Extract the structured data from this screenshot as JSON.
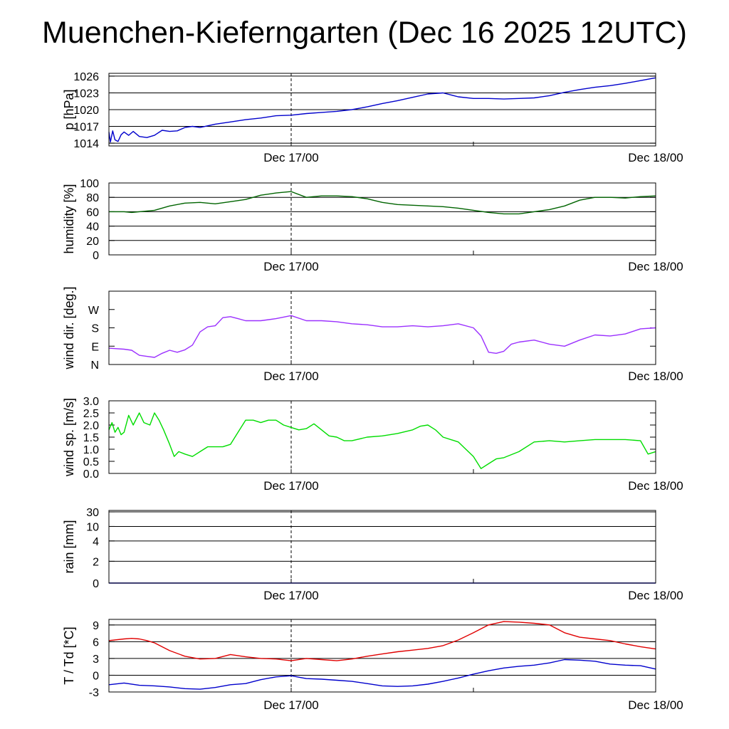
{
  "title": "Muenchen-Kieferngarten (Dec 16 2025 12UTC)",
  "x_ticks": [
    "Dec 17/00",
    "Dec 18/00"
  ],
  "x_range_hours": [
    0,
    36
  ],
  "chart_data": [
    {
      "id": "pressure",
      "type": "line",
      "ylabel": "p [hPa]",
      "ylim": [
        1013.5,
        1026.5
      ],
      "scale": "linear",
      "grid": true,
      "ticks": [
        1014,
        1017,
        1020,
        1023,
        1026
      ],
      "tick_labels": [
        "1014",
        "1017",
        "1020",
        "1023",
        "1026"
      ],
      "series": [
        {
          "color": "#0000cc",
          "x": [
            0,
            0.1,
            0.25,
            0.4,
            0.6,
            0.8,
            1,
            1.3,
            1.6,
            2,
            2.5,
            3,
            3.5,
            4,
            4.5,
            5,
            5.5,
            6,
            7,
            8,
            9,
            10,
            11,
            12,
            13,
            14,
            15,
            16,
            17,
            18,
            19,
            20,
            21,
            22,
            23,
            24,
            25,
            26,
            27,
            28,
            29,
            30,
            31,
            32,
            33,
            34,
            35,
            36
          ],
          "y": [
            1016.0,
            1014.2,
            1016.2,
            1014.6,
            1014.3,
            1015.5,
            1016.0,
            1015.4,
            1016.1,
            1015.2,
            1015.0,
            1015.4,
            1016.3,
            1016.1,
            1016.2,
            1016.8,
            1017.0,
            1016.8,
            1017.4,
            1017.8,
            1018.2,
            1018.5,
            1018.9,
            1019.0,
            1019.3,
            1019.5,
            1019.7,
            1020.0,
            1020.5,
            1021.1,
            1021.6,
            1022.2,
            1022.8,
            1023.0,
            1022.3,
            1022.0,
            1022.0,
            1021.9,
            1022.0,
            1022.1,
            1022.5,
            1023.1,
            1023.6,
            1024.0,
            1024.3,
            1024.7,
            1025.2,
            1025.7
          ]
        }
      ]
    },
    {
      "id": "humidity",
      "type": "line",
      "ylabel": "humidity [%]",
      "ylim": [
        0,
        100
      ],
      "scale": "linear",
      "grid": true,
      "ticks": [
        0,
        20,
        40,
        60,
        80,
        100
      ],
      "tick_labels": [
        "0",
        "20",
        "40",
        "60",
        "80",
        "100"
      ],
      "series": [
        {
          "color": "#006400",
          "x": [
            0,
            1,
            1.5,
            2,
            3,
            4,
            5,
            6,
            7,
            8,
            9,
            10,
            11,
            12,
            13,
            14,
            15,
            16,
            17,
            18,
            19,
            20,
            21,
            22,
            23,
            24,
            25,
            26,
            27,
            28,
            29,
            30,
            31,
            32,
            33,
            34,
            35,
            36
          ],
          "y": [
            60,
            60,
            59,
            60,
            62,
            68,
            72,
            73,
            71,
            74,
            77,
            83,
            86,
            88,
            80,
            82,
            82,
            81,
            78,
            73,
            70,
            69,
            68,
            67,
            65,
            62,
            59,
            57,
            57,
            60,
            63,
            68,
            76,
            80,
            80,
            79,
            81,
            82
          ]
        }
      ]
    },
    {
      "id": "wind-direction",
      "type": "line",
      "ylabel": "wind dir. [deg.]",
      "ylim": [
        0,
        360
      ],
      "scale": "linear",
      "grid": false,
      "ticks": [
        0,
        90,
        180,
        270
      ],
      "tick_labels": [
        "N",
        "E",
        "S",
        "W"
      ],
      "series": [
        {
          "color": "#9b30ff",
          "x": [
            0,
            1,
            1.5,
            2,
            2.5,
            3,
            3.5,
            4,
            4.5,
            5,
            5.5,
            6,
            6.5,
            7,
            7.5,
            8,
            8.5,
            9,
            10,
            11,
            12,
            13,
            14,
            15,
            16,
            17,
            18,
            19,
            20,
            21,
            22,
            23,
            24,
            24.5,
            25,
            25.5,
            26,
            26.5,
            27,
            28,
            29,
            30,
            31,
            32,
            33,
            34,
            35,
            36
          ],
          "y": [
            80,
            75,
            70,
            45,
            40,
            35,
            55,
            70,
            60,
            72,
            95,
            160,
            185,
            190,
            230,
            235,
            225,
            215,
            215,
            225,
            240,
            215,
            215,
            210,
            200,
            195,
            185,
            185,
            190,
            185,
            190,
            200,
            180,
            140,
            60,
            55,
            65,
            100,
            110,
            120,
            100,
            90,
            120,
            145,
            140,
            150,
            175,
            180
          ]
        }
      ]
    },
    {
      "id": "wind-speed",
      "type": "line",
      "ylabel": "wind sp. [m/s]",
      "ylim": [
        0,
        3
      ],
      "scale": "linear",
      "grid": false,
      "ticks": [
        0,
        0.5,
        1,
        1.5,
        2,
        2.5,
        3
      ],
      "tick_labels": [
        "0.0",
        "0.5",
        "1.0",
        "1.5",
        "2.0",
        "2.5",
        "3.0"
      ],
      "series": [
        {
          "color": "#00dd00",
          "x": [
            0,
            0.2,
            0.4,
            0.6,
            0.8,
            1,
            1.3,
            1.6,
            2,
            2.3,
            2.7,
            3,
            3.3,
            3.6,
            4,
            4.3,
            4.6,
            5,
            5.5,
            6,
            6.5,
            7,
            7.5,
            8,
            8.5,
            9,
            9.5,
            10,
            10.5,
            11,
            11.5,
            12,
            12.5,
            13,
            13.5,
            14,
            14.5,
            15,
            15.5,
            16,
            17,
            18,
            19,
            20,
            20.5,
            21,
            21.5,
            22,
            23,
            23.5,
            24,
            24.5,
            25,
            25.5,
            26,
            27,
            28,
            29,
            30,
            31,
            32,
            33,
            34,
            35,
            35.5,
            36
          ],
          "y": [
            1.8,
            2.1,
            1.7,
            1.9,
            1.6,
            1.7,
            2.4,
            2.0,
            2.5,
            2.1,
            2.0,
            2.5,
            2.2,
            1.8,
            1.2,
            0.7,
            0.9,
            0.8,
            0.7,
            0.9,
            1.1,
            1.1,
            1.1,
            1.2,
            1.7,
            2.2,
            2.2,
            2.1,
            2.2,
            2.2,
            2.0,
            1.9,
            1.8,
            1.85,
            2.05,
            1.8,
            1.55,
            1.5,
            1.35,
            1.35,
            1.5,
            1.55,
            1.65,
            1.8,
            1.95,
            2.0,
            1.8,
            1.5,
            1.3,
            1.0,
            0.7,
            0.2,
            0.4,
            0.6,
            0.65,
            0.9,
            1.3,
            1.35,
            1.3,
            1.35,
            1.4,
            1.4,
            1.4,
            1.35,
            0.8,
            0.9
          ]
        }
      ]
    },
    {
      "id": "rain",
      "type": "line",
      "ylabel": "rain [mm]",
      "ylim": [
        0,
        30
      ],
      "scale": "nonlinear",
      "grid": true,
      "ticks": [
        0,
        2,
        4,
        10,
        30
      ],
      "tick_labels": [
        "0",
        "2",
        "4",
        "10",
        "30"
      ],
      "series": [
        {
          "color": "#0000cc",
          "x": [
            0,
            36
          ],
          "y": [
            0,
            0
          ]
        }
      ]
    },
    {
      "id": "temperature",
      "type": "line",
      "ylabel": "T / Td [*C]",
      "ylim": [
        -3,
        10
      ],
      "scale": "linear",
      "grid": true,
      "ticks": [
        -3,
        0,
        3,
        6,
        9
      ],
      "tick_labels": [
        "-3",
        "0",
        "3",
        "6",
        "9"
      ],
      "series": [
        {
          "color": "#e00000",
          "x": [
            0,
            1,
            1.5,
            2,
            2.5,
            3,
            4,
            5,
            6,
            7,
            8,
            9,
            10,
            11,
            12,
            13,
            14,
            15,
            16,
            17,
            18,
            19,
            20,
            21,
            22,
            23,
            24,
            25,
            26,
            27,
            28,
            29,
            30,
            31,
            32,
            33,
            34,
            35,
            36
          ],
          "y": [
            6.2,
            6.5,
            6.6,
            6.5,
            6.2,
            5.8,
            4.4,
            3.4,
            2.9,
            3.0,
            3.7,
            3.3,
            3.0,
            2.9,
            2.6,
            3.0,
            2.8,
            2.6,
            2.9,
            3.4,
            3.8,
            4.2,
            4.5,
            4.8,
            5.3,
            6.3,
            7.6,
            9.0,
            9.6,
            9.5,
            9.3,
            9.0,
            7.6,
            6.8,
            6.5,
            6.2,
            5.6,
            5.1,
            4.7
          ]
        },
        {
          "color": "#0000cc",
          "x": [
            0,
            1,
            2,
            3,
            4,
            5,
            6,
            7,
            8,
            9,
            10,
            11,
            12,
            13,
            14,
            15,
            16,
            17,
            18,
            19,
            20,
            21,
            22,
            23,
            24,
            25,
            26,
            27,
            28,
            29,
            30,
            31,
            32,
            33,
            34,
            35,
            36
          ],
          "y": [
            -1.7,
            -1.4,
            -1.8,
            -1.9,
            -2.1,
            -2.4,
            -2.5,
            -2.2,
            -1.7,
            -1.5,
            -0.8,
            -0.3,
            -0.1,
            -0.6,
            -0.7,
            -0.9,
            -1.1,
            -1.5,
            -1.9,
            -2.0,
            -1.9,
            -1.6,
            -1.1,
            -0.5,
            0.2,
            0.8,
            1.3,
            1.6,
            1.8,
            2.2,
            2.8,
            2.7,
            2.5,
            2.0,
            1.8,
            1.7,
            1.1
          ]
        }
      ]
    }
  ]
}
